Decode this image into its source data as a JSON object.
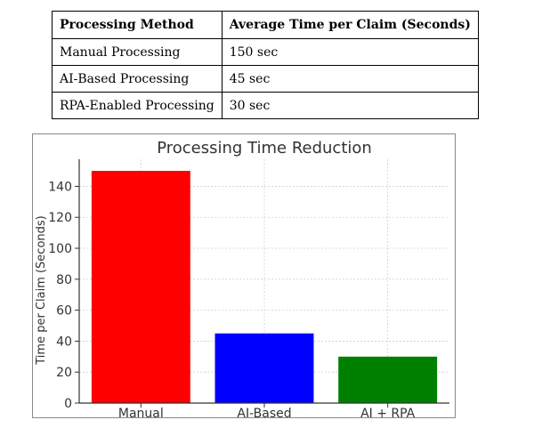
{
  "table": {
    "headers": [
      "Processing Method",
      "Average Time per Claim (Seconds)"
    ],
    "rows": [
      [
        "Manual Processing",
        "150 sec"
      ],
      [
        "AI-Based Processing",
        "45 sec"
      ],
      [
        "RPA-Enabled Processing",
        "30 sec"
      ]
    ]
  },
  "chart_data": {
    "type": "bar",
    "title": "Processing Time Reduction",
    "xlabel": "",
    "ylabel": "Time per Claim (Seconds)",
    "categories": [
      "Manual",
      "AI-Based",
      "AI + RPA"
    ],
    "values": [
      150,
      45,
      30
    ],
    "colors": [
      "#ff0000",
      "#0000ff",
      "#008000"
    ],
    "ylim": [
      0,
      157.5
    ],
    "yticks": [
      0,
      20,
      40,
      60,
      80,
      100,
      120,
      140
    ],
    "grid": true,
    "legend": "none"
  }
}
